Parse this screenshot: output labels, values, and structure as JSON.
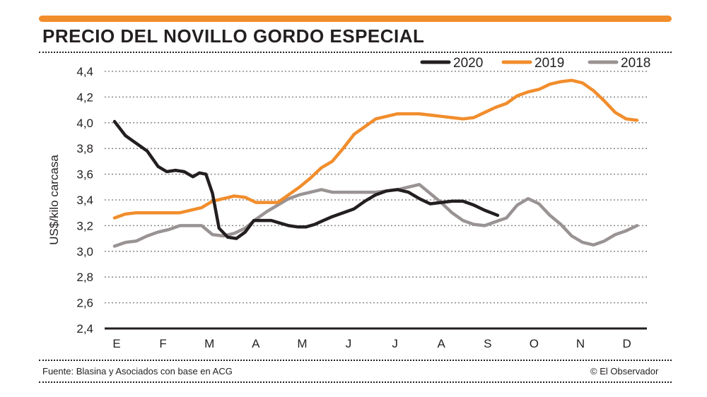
{
  "title": "PRECIO DEL NOVILLO GORDO ESPECIAL",
  "source": "Fuente: Blasina y Asociados con base en ACG",
  "credit": "© El Observador",
  "colors": {
    "accent": "#f18d2c",
    "s2020": "#231f20",
    "s2019": "#f18d2c",
    "s2018": "#9a9393"
  },
  "chart_data": {
    "type": "line",
    "title": "PRECIO DEL NOVILLO GORDO ESPECIAL",
    "xlabel": "",
    "ylabel": "US$/kilo carcasa",
    "ylim": [
      2.4,
      4.4
    ],
    "xlim": [
      0,
      12
    ],
    "grid": true,
    "legend_position": "top-right",
    "categories": [
      "E",
      "F",
      "M",
      "A",
      "M",
      "J",
      "J",
      "A",
      "S",
      "O",
      "N",
      "D"
    ],
    "yticks": [
      "2,4",
      "2,6",
      "2,8",
      "3,0",
      "3,2",
      "3,4",
      "3,6",
      "3,8",
      "4,0",
      "4,2",
      "4,4"
    ],
    "series": [
      {
        "name": "2020",
        "color": "#231f20",
        "x": [
          0,
          0.25,
          0.5,
          0.75,
          1.0,
          1.2,
          1.4,
          1.6,
          1.8,
          1.95,
          2.1,
          2.25,
          2.4,
          2.6,
          2.8,
          3.0,
          3.2,
          3.4,
          3.6,
          3.8,
          4.0,
          4.2,
          4.4,
          4.6,
          4.8,
          5.0,
          5.25,
          5.5,
          5.75,
          6.0,
          6.25,
          6.5,
          6.75,
          7.0,
          7.25,
          7.5,
          7.75,
          8.0,
          8.25,
          8.5,
          8.8
        ],
        "values": [
          4.01,
          3.9,
          3.84,
          3.78,
          3.66,
          3.62,
          3.63,
          3.62,
          3.58,
          3.61,
          3.6,
          3.45,
          3.18,
          3.11,
          3.1,
          3.15,
          3.24,
          3.24,
          3.24,
          3.22,
          3.2,
          3.19,
          3.19,
          3.21,
          3.24,
          3.27,
          3.3,
          3.33,
          3.39,
          3.44,
          3.47,
          3.48,
          3.46,
          3.41,
          3.37,
          3.38,
          3.39,
          3.39,
          3.36,
          3.32,
          3.28
        ]
      },
      {
        "name": "2019",
        "color": "#f18d2c",
        "x": [
          0,
          0.25,
          0.5,
          1.0,
          1.5,
          1.75,
          2.0,
          2.25,
          2.5,
          2.75,
          3.0,
          3.25,
          3.5,
          3.75,
          4.0,
          4.25,
          4.5,
          4.75,
          5.0,
          5.25,
          5.5,
          6.0,
          6.5,
          7.0,
          7.25,
          7.5,
          7.75,
          8.0,
          8.25,
          8.5,
          8.75,
          9.0,
          9.25,
          9.5,
          9.75,
          10.0,
          10.25,
          10.5,
          10.75,
          11.0,
          11.25,
          11.5,
          11.75,
          12.0
        ],
        "values": [
          3.26,
          3.29,
          3.3,
          3.3,
          3.3,
          3.32,
          3.34,
          3.39,
          3.41,
          3.43,
          3.42,
          3.38,
          3.38,
          3.38,
          3.44,
          3.5,
          3.57,
          3.65,
          3.7,
          3.8,
          3.91,
          4.03,
          4.07,
          4.07,
          4.06,
          4.05,
          4.04,
          4.03,
          4.04,
          4.08,
          4.12,
          4.15,
          4.21,
          4.24,
          4.26,
          4.3,
          4.32,
          4.33,
          4.31,
          4.25,
          4.17,
          4.08,
          4.03,
          4.02
        ]
      },
      {
        "name": "2018",
        "color": "#9a9393",
        "x": [
          0,
          0.25,
          0.5,
          0.75,
          1.0,
          1.25,
          1.5,
          1.75,
          2.0,
          2.25,
          2.5,
          2.75,
          3.0,
          3.25,
          3.5,
          3.75,
          4.0,
          4.25,
          4.5,
          4.75,
          5.0,
          5.5,
          6.0,
          6.5,
          6.75,
          7.0,
          7.25,
          7.5,
          7.75,
          8.0,
          8.25,
          8.5,
          8.75,
          9.0,
          9.25,
          9.5,
          9.75,
          10.0,
          10.25,
          10.5,
          10.75,
          11.0,
          11.25,
          11.5,
          11.75,
          12.0
        ],
        "values": [
          3.04,
          3.07,
          3.08,
          3.12,
          3.15,
          3.17,
          3.2,
          3.2,
          3.2,
          3.13,
          3.12,
          3.14,
          3.18,
          3.25,
          3.31,
          3.36,
          3.41,
          3.44,
          3.46,
          3.48,
          3.46,
          3.46,
          3.46,
          3.48,
          3.5,
          3.52,
          3.45,
          3.38,
          3.3,
          3.24,
          3.21,
          3.2,
          3.23,
          3.26,
          3.36,
          3.41,
          3.37,
          3.28,
          3.21,
          3.12,
          3.07,
          3.05,
          3.08,
          3.13,
          3.16,
          3.2
        ]
      }
    ]
  }
}
